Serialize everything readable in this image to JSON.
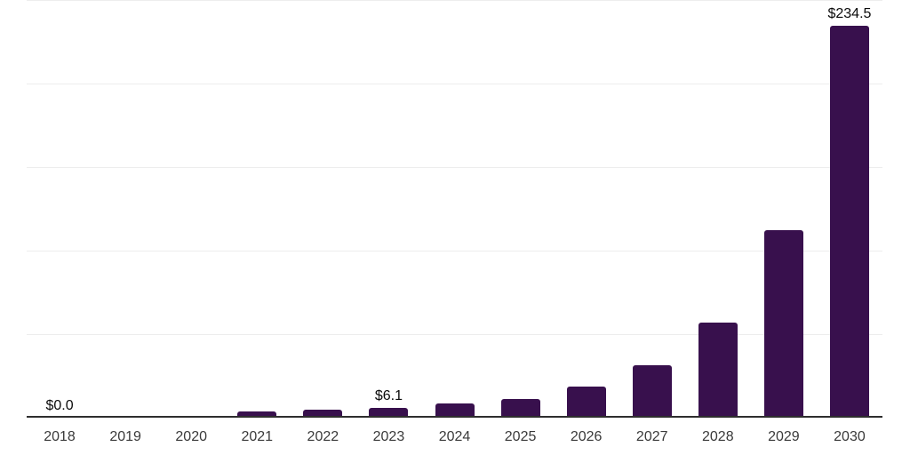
{
  "chart_data": {
    "type": "bar",
    "title": "",
    "categories": [
      "2018",
      "2019",
      "2020",
      "2021",
      "2022",
      "2023",
      "2024",
      "2025",
      "2026",
      "2027",
      "2028",
      "2029",
      "2030"
    ],
    "values": [
      0.0,
      0.0,
      0.0,
      3.7,
      4.8,
      6.1,
      8.3,
      11.2,
      18.6,
      31.4,
      57.0,
      112.3,
      234.5
    ],
    "value_labels": [
      "$0.0",
      "",
      "",
      "",
      "",
      "$6.1",
      "",
      "",
      "",
      "",
      "",
      "",
      "$234.5"
    ],
    "xlabel": "",
    "ylabel": "",
    "ylim": [
      0,
      250
    ],
    "gridline_step": 50,
    "grid": true,
    "legend": false,
    "y_tick_labels_visible": false,
    "value_prefix": "$"
  },
  "style": {
    "bar_color": "#38104d",
    "axis_color": "#2e2e2e",
    "gridline_color": "#ededed",
    "tick_label_color": "#3a3a3a",
    "value_label_color": "#0a0a0a",
    "background": "#ffffff"
  }
}
